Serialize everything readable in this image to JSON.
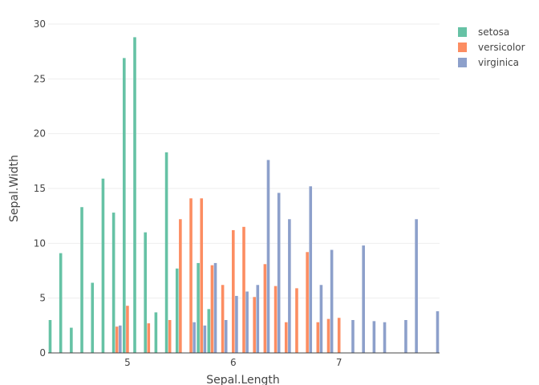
{
  "chart_data": {
    "type": "bar",
    "xlabel": "Sepal.Length",
    "ylabel": "Sepal.Width",
    "xlim": [
      4.25,
      7.95
    ],
    "ylim": [
      0,
      30
    ],
    "x_ticks": [
      "5",
      "6",
      "7"
    ],
    "y_ticks": [
      "0",
      "5",
      "10",
      "15",
      "20",
      "25",
      "30"
    ],
    "grid": true,
    "legend_position": "top-right",
    "series": [
      {
        "name": "setosa",
        "color": "#66c2a5",
        "x": [
          4.3,
          4.4,
          4.5,
          4.6,
          4.7,
          4.8,
          4.9,
          5.0,
          5.1,
          5.2,
          5.3,
          5.4,
          5.5,
          5.7,
          5.8
        ],
        "values": [
          3.0,
          9.1,
          2.3,
          13.3,
          6.4,
          15.9,
          12.8,
          26.9,
          28.8,
          11.0,
          3.7,
          18.3,
          7.7,
          8.2,
          4.0
        ]
      },
      {
        "name": "versicolor",
        "color": "#fc8d62",
        "x": [
          4.9,
          5.0,
          5.2,
          5.4,
          5.5,
          5.6,
          5.7,
          5.8,
          5.9,
          6.0,
          6.1,
          6.2,
          6.3,
          6.4,
          6.5,
          6.6,
          6.7,
          6.8,
          6.9,
          7.0
        ],
        "values": [
          2.4,
          4.3,
          2.7,
          3.0,
          12.2,
          14.1,
          14.1,
          8.0,
          6.2,
          11.2,
          11.5,
          5.1,
          8.1,
          6.1,
          2.8,
          5.9,
          9.2,
          2.8,
          3.1,
          3.2
        ]
      },
      {
        "name": "virginica",
        "color": "#8da0cb",
        "x": [
          4.9,
          5.6,
          5.7,
          5.8,
          5.9,
          6.0,
          6.1,
          6.2,
          6.3,
          6.4,
          6.5,
          6.7,
          6.8,
          6.9,
          7.1,
          7.2,
          7.3,
          7.4,
          7.6,
          7.7,
          7.9
        ],
        "values": [
          2.5,
          2.8,
          2.5,
          8.2,
          3.0,
          5.2,
          5.6,
          6.2,
          17.6,
          14.6,
          12.2,
          15.2,
          6.2,
          9.4,
          3.0,
          9.8,
          2.9,
          2.8,
          3.0,
          12.2,
          3.8
        ]
      }
    ]
  }
}
